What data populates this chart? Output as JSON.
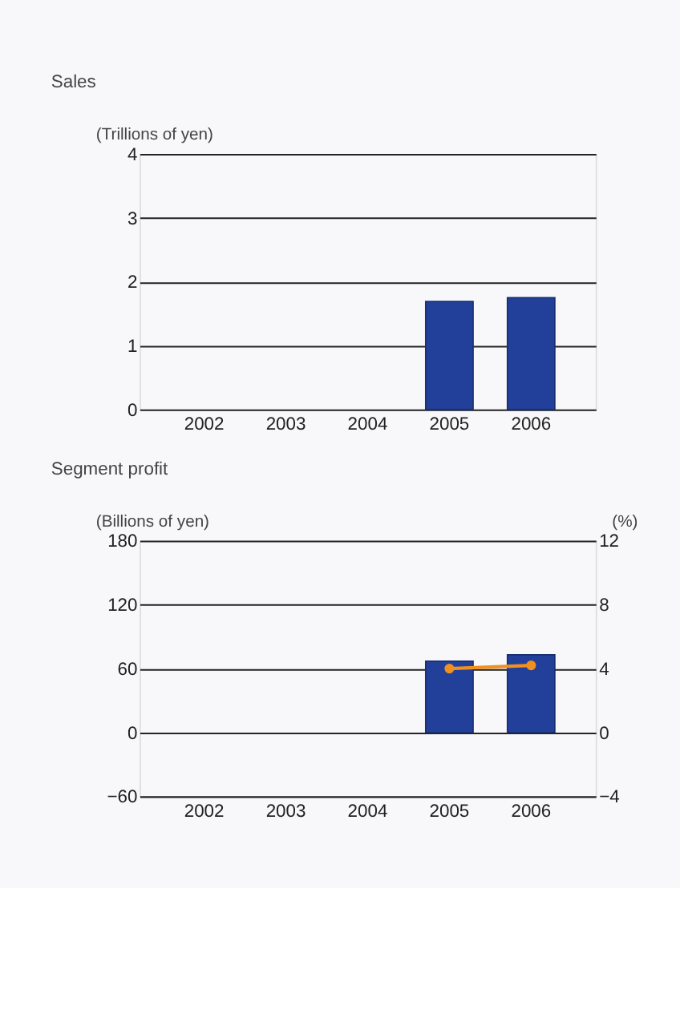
{
  "chart_data": [
    {
      "type": "bar",
      "title": "Sales",
      "ylabel": "(Trillions of yen)",
      "categories": [
        "2002",
        "2003",
        "2004",
        "2005",
        "2006"
      ],
      "series": [
        {
          "color": "#22409a",
          "values": [
            null,
            null,
            null,
            1.69,
            1.75
          ]
        }
      ],
      "ylim": [
        0,
        4
      ],
      "yticks": [
        0,
        1,
        2,
        3,
        4
      ],
      "grid": "y"
    },
    {
      "type": "bar",
      "title": "Segment profit",
      "ylabel": "(Billions of yen)",
      "y2label": "(%)",
      "categories": [
        "2002",
        "2003",
        "2004",
        "2005",
        "2006"
      ],
      "series": [
        {
          "color": "#22409a",
          "values": [
            null,
            null,
            null,
            67,
            73
          ]
        },
        {
          "type": "line",
          "axis": "y2",
          "color": "#f0901e",
          "values": [
            null,
            null,
            null,
            4.0,
            4.2
          ]
        }
      ],
      "ylim": [
        -60,
        180
      ],
      "yticks": [
        -60,
        0,
        60,
        120,
        180
      ],
      "y2lim": [
        -4,
        12
      ],
      "y2ticks": [
        -4,
        0,
        4,
        8,
        12
      ],
      "grid": "y",
      "marker": "circle",
      "line_style": "solid"
    }
  ]
}
